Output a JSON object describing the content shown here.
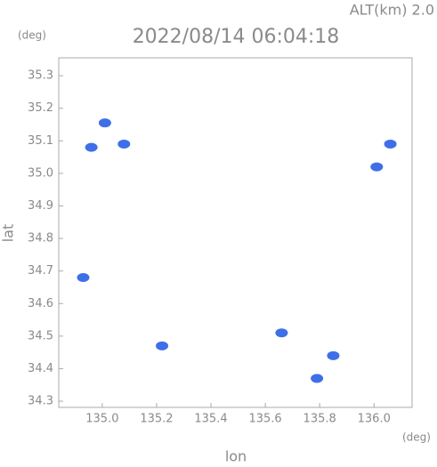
{
  "chart_data": {
    "type": "scatter",
    "subtitle": "ALT(km) 2.0",
    "title": "2022/08/14 06:04:18",
    "y_unit": "(deg)",
    "x_unit": "(deg)",
    "xlabel": "lon",
    "ylabel": "lat",
    "x": [
      134.96,
      135.08,
      135.01,
      136.06,
      136.01,
      134.93,
      135.22,
      135.66,
      135.79,
      135.85
    ],
    "values": [
      35.08,
      35.09,
      35.155,
      35.09,
      35.02,
      34.68,
      34.47,
      34.51,
      34.37,
      34.44
    ],
    "color": "#3f6fe8",
    "xlim": [
      134.84,
      136.14
    ],
    "ylim": [
      34.281,
      35.355
    ],
    "xticks": [
      {
        "value": 135,
        "label": "135.0"
      },
      135.2,
      135.4,
      135.6,
      135.8,
      {
        "value": 136,
        "label": "136.0"
      }
    ],
    "yticks": [
      34.3,
      34.4,
      34.5,
      34.6,
      34.7,
      34.8,
      34.9,
      {
        "value": 35,
        "label": "35.0"
      },
      35.1,
      35.2,
      35.3
    ]
  }
}
